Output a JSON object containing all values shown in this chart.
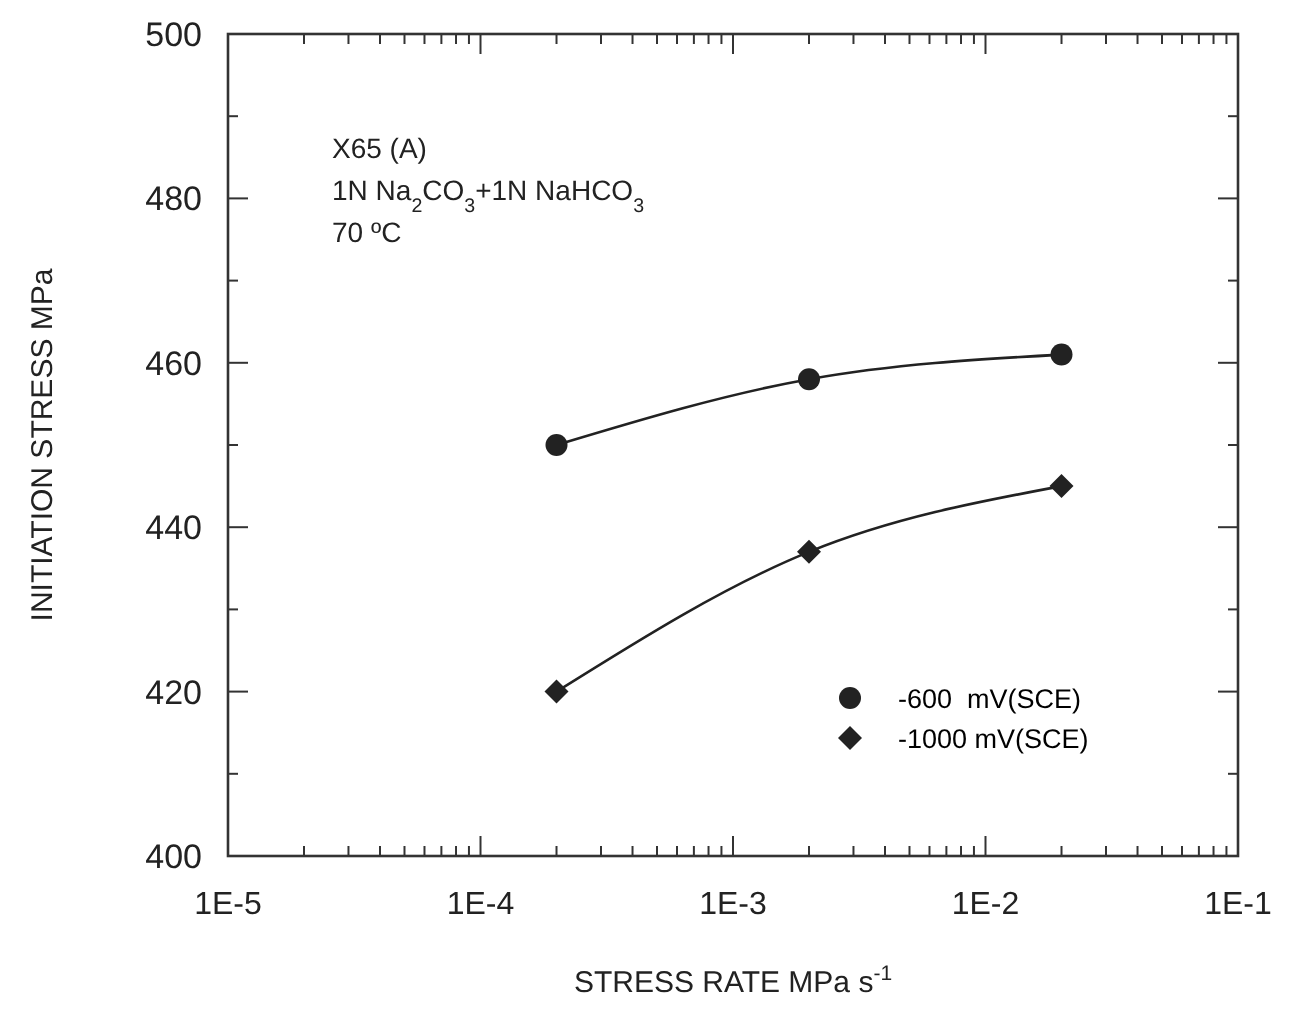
{
  "chart_data": {
    "type": "line",
    "xlabel": "STRESS RATE MPa s$^{-1}$",
    "ylabel": "INITIATION STRESS MPa",
    "log": "x",
    "xlim": [
      1e-05,
      0.1
    ],
    "ylim": [
      400,
      500
    ],
    "xticks": [
      {
        "value": 1e-05,
        "label": "1E-5"
      },
      {
        "value": 2e-05,
        "label": null
      },
      {
        "value": 3e-05,
        "label": null
      },
      {
        "value": 4e-05,
        "label": null
      },
      {
        "value": 5e-05,
        "label": null
      },
      {
        "value": 6e-05,
        "label": null
      },
      {
        "value": 7e-05,
        "label": null
      },
      {
        "value": 8e-05,
        "label": null
      },
      {
        "value": 9e-05,
        "label": null
      },
      {
        "value": 0.0001,
        "label": "1E-4"
      },
      {
        "value": 0.0002,
        "label": null
      },
      {
        "value": 0.0003,
        "label": null
      },
      {
        "value": 0.0004,
        "label": null
      },
      {
        "value": 0.0005,
        "label": null
      },
      {
        "value": 0.0006,
        "label": null
      },
      {
        "value": 0.0007,
        "label": null
      },
      {
        "value": 0.0008,
        "label": null
      },
      {
        "value": 0.0009,
        "label": null
      },
      {
        "value": 0.001,
        "label": "1E-3"
      },
      {
        "value": 0.002,
        "label": null
      },
      {
        "value": 0.003,
        "label": null
      },
      {
        "value": 0.004,
        "label": null
      },
      {
        "value": 0.005,
        "label": null
      },
      {
        "value": 0.006,
        "label": null
      },
      {
        "value": 0.007,
        "label": null
      },
      {
        "value": 0.008,
        "label": null
      },
      {
        "value": 0.009,
        "label": null
      },
      {
        "value": 0.01,
        "label": "1E-2"
      },
      {
        "value": 0.02,
        "label": null
      },
      {
        "value": 0.03,
        "label": null
      },
      {
        "value": 0.04,
        "label": null
      },
      {
        "value": 0.05,
        "label": null
      },
      {
        "value": 0.06,
        "label": null
      },
      {
        "value": 0.07,
        "label": null
      },
      {
        "value": 0.08,
        "label": null
      },
      {
        "value": 0.09,
        "label": null
      },
      {
        "value": 0.1,
        "label": "1E-1"
      }
    ],
    "yticks": [
      400,
      {
        "value": 410,
        "label": null
      },
      420,
      {
        "value": 430,
        "label": null
      },
      440,
      {
        "value": 450,
        "label": null
      },
      460,
      {
        "value": 470,
        "label": null
      },
      480,
      {
        "value": 490,
        "label": null
      },
      500
    ],
    "x": [
      0.0002,
      0.002,
      0.02
    ],
    "series": [
      {
        "name": "-600  mV(SCE)",
        "color": "#222222",
        "marker": "circle",
        "values": [
          450,
          458,
          461
        ]
      },
      {
        "name": "-1000 mV(SCE)",
        "color": "#222222",
        "marker": "diamond",
        "values": [
          420,
          437,
          445
        ]
      }
    ],
    "legend": "bottom right",
    "grid": false,
    "annotations": [
      "X65 (A)",
      "1N Na$_{2}$CO$_{3}$+1N NaHCO$_{3}$",
      "70 ºC"
    ]
  }
}
